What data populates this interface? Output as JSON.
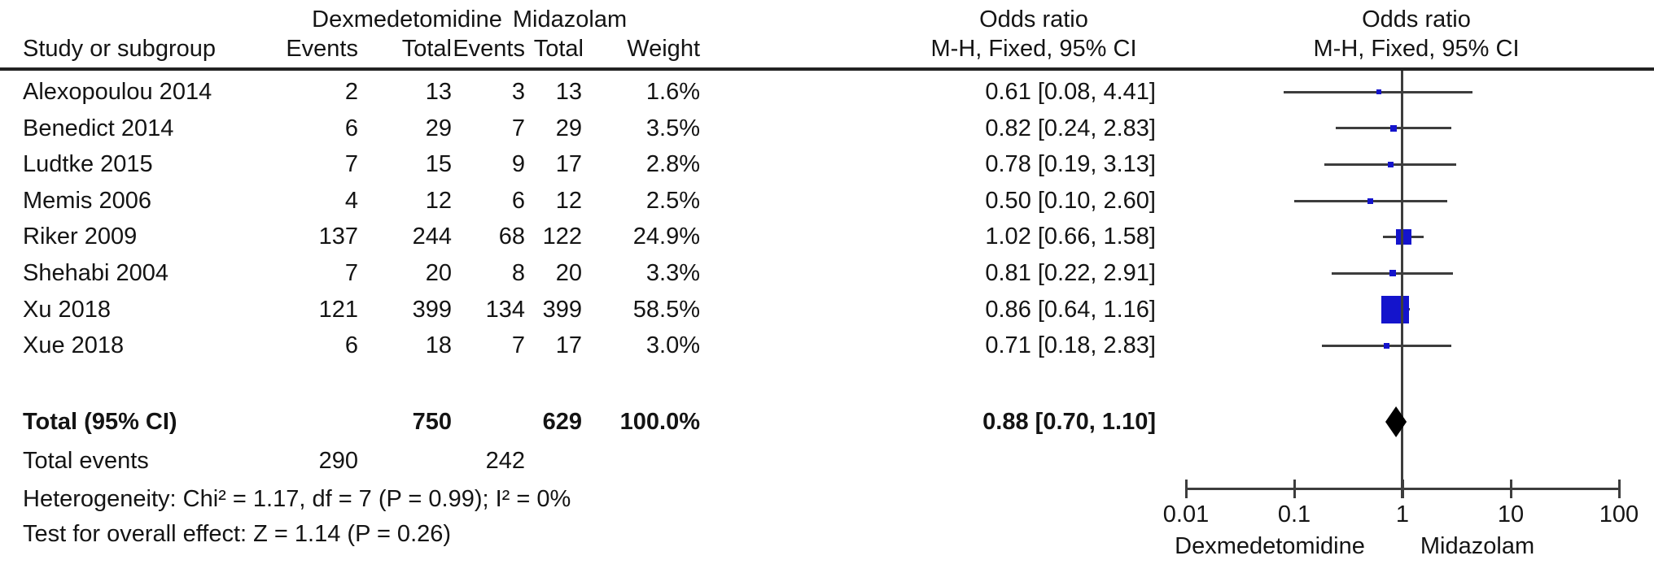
{
  "header": {
    "study_col": "Study or subgroup",
    "group1": "Dexmedetomidine",
    "group2": "Midazolam",
    "events": "Events",
    "total": "Total",
    "weight": "Weight",
    "or_title": "Odds ratio",
    "or_sub": "M-H, Fixed, 95% CI"
  },
  "colors": {
    "square": "#1414cc",
    "diamond": "#000000",
    "line": "#3d3d3d",
    "text": "#141414"
  },
  "chart_data": {
    "type": "forest",
    "effect_measure": "Odds ratio",
    "method": "M-H, Fixed, 95% CI",
    "x_axis": {
      "scale": "log",
      "ticks": [
        0.01,
        0.1,
        1,
        10,
        100
      ],
      "tick_labels": [
        "0.01",
        "0.1",
        "1",
        "10",
        "100"
      ],
      "left_label": "Dexmedetomidine",
      "right_label": "Midazolam"
    },
    "studies": [
      {
        "name": "Alexopoulou 2014",
        "dex_events": "2",
        "dex_total": "13",
        "mid_events": "3",
        "mid_total": "13",
        "weight": "1.6%",
        "weight_pct": 1.6,
        "or": 0.61,
        "ci_low": 0.08,
        "ci_high": 4.41,
        "or_text": "0.61 [0.08, 4.41]"
      },
      {
        "name": "Benedict 2014",
        "dex_events": "6",
        "dex_total": "29",
        "mid_events": "7",
        "mid_total": "29",
        "weight": "3.5%",
        "weight_pct": 3.5,
        "or": 0.82,
        "ci_low": 0.24,
        "ci_high": 2.83,
        "or_text": "0.82 [0.24, 2.83]"
      },
      {
        "name": "Ludtke 2015",
        "dex_events": "7",
        "dex_total": "15",
        "mid_events": "9",
        "mid_total": "17",
        "weight": "2.8%",
        "weight_pct": 2.8,
        "or": 0.78,
        "ci_low": 0.19,
        "ci_high": 3.13,
        "or_text": "0.78 [0.19, 3.13]"
      },
      {
        "name": "Memis 2006",
        "dex_events": "4",
        "dex_total": "12",
        "mid_events": "6",
        "mid_total": "12",
        "weight": "2.5%",
        "weight_pct": 2.5,
        "or": 0.5,
        "ci_low": 0.1,
        "ci_high": 2.6,
        "or_text": "0.50 [0.10, 2.60]"
      },
      {
        "name": "Riker 2009",
        "dex_events": "137",
        "dex_total": "244",
        "mid_events": "68",
        "mid_total": "122",
        "weight": "24.9%",
        "weight_pct": 24.9,
        "or": 1.02,
        "ci_low": 0.66,
        "ci_high": 1.58,
        "or_text": "1.02 [0.66, 1.58]"
      },
      {
        "name": "Shehabi 2004",
        "dex_events": "7",
        "dex_total": "20",
        "mid_events": "8",
        "mid_total": "20",
        "weight": "3.3%",
        "weight_pct": 3.3,
        "or": 0.81,
        "ci_low": 0.22,
        "ci_high": 2.91,
        "or_text": "0.81 [0.22, 2.91]"
      },
      {
        "name": "Xu 2018",
        "dex_events": "121",
        "dex_total": "399",
        "mid_events": "134",
        "mid_total": "399",
        "weight": "58.5%",
        "weight_pct": 58.5,
        "or": 0.86,
        "ci_low": 0.64,
        "ci_high": 1.16,
        "or_text": "0.86 [0.64, 1.16]"
      },
      {
        "name": "Xue 2018",
        "dex_events": "6",
        "dex_total": "18",
        "mid_events": "7",
        "mid_total": "17",
        "weight": "3.0%",
        "weight_pct": 3.0,
        "or": 0.71,
        "ci_low": 0.18,
        "ci_high": 2.83,
        "or_text": "0.71 [0.18, 2.83]"
      }
    ],
    "total": {
      "label": "Total (95% CI)",
      "dex_total": "750",
      "mid_total": "629",
      "weight": "100.0%",
      "or": 0.88,
      "ci_low": 0.7,
      "ci_high": 1.1,
      "or_text": "0.88 [0.70, 1.10]"
    },
    "total_events": {
      "label": "Total events",
      "dex": "290",
      "mid": "242"
    },
    "heterogeneity": "Heterogeneity: Chi² = 1.17, df = 7 (P = 0.99); I² = 0%",
    "overall_effect": "Test for overall effect: Z = 1.14 (P = 0.26)"
  }
}
